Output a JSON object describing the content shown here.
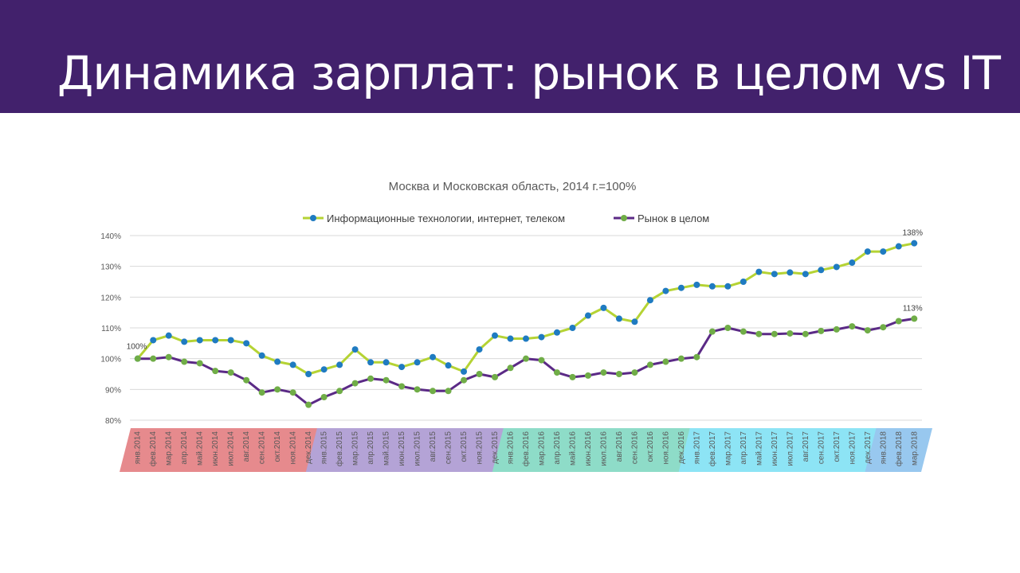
{
  "header": {
    "title": "Динамика зарплат: рынок в целом vs IT",
    "bg_color": "#42216c"
  },
  "chart_data": {
    "type": "line",
    "title": "Москва и Московская область, 2014 г.=100%",
    "xlabel": "",
    "ylabel": "",
    "ylim": [
      80,
      140
    ],
    "yticks": [
      "80%",
      "90%",
      "100%",
      "110%",
      "120%",
      "130%",
      "140%"
    ],
    "grid": true,
    "legend_position": "top",
    "categories": [
      "янв.2014",
      "фев.2014",
      "мар.2014",
      "апр.2014",
      "май.2014",
      "июн.2014",
      "июл.2014",
      "авг.2014",
      "сен.2014",
      "окт.2014",
      "ноя.2014",
      "дек.2014",
      "янв.2015",
      "фев.2015",
      "мар.2015",
      "апр.2015",
      "май.2015",
      "июн.2015",
      "июл.2015",
      "авг.2015",
      "сен.2015",
      "окт.2015",
      "ноя.2015",
      "дек.2015",
      "янв.2016",
      "фев.2016",
      "мар.2016",
      "апр.2016",
      "май.2016",
      "июн.2016",
      "июл.2016",
      "авг.2016",
      "сен.2016",
      "окт.2016",
      "ноя.2016",
      "дек.2016",
      "янв.2017",
      "фев.2017",
      "мар.2017",
      "апр.2017",
      "май.2017",
      "июн.2017",
      "июл.2017",
      "авг.2017",
      "сен.2017",
      "окт.2017",
      "ноя.2017",
      "дек.2017",
      "янв.2018",
      "фев.2018",
      "мар.2018"
    ],
    "series": [
      {
        "name": "Информационные технологии, интернет, телеком",
        "line_color": "#b5d334",
        "marker_color": "#1f7bc1",
        "values": [
          100,
          106,
          107.5,
          105.5,
          106,
          106,
          106,
          105,
          101,
          99,
          98,
          95,
          96.5,
          98,
          103,
          98.8,
          98.8,
          97.3,
          98.8,
          100.5,
          97.8,
          95.8,
          103,
          107.5,
          106.5,
          106.5,
          107,
          108.5,
          110,
          114,
          116.5,
          113,
          112,
          119,
          122,
          123,
          124,
          123.5,
          123.5,
          125,
          128.2,
          127.5,
          128,
          127.5,
          128.8,
          129.8,
          131.2,
          134.8,
          134.8,
          136.5,
          137.5
        ]
      },
      {
        "name": "Рынок в целом",
        "line_color": "#5b2a86",
        "marker_color": "#70ad47",
        "values": [
          100,
          100,
          100.5,
          99,
          98.5,
          96,
          95.5,
          93,
          89,
          90,
          89,
          85,
          87.5,
          89.5,
          92,
          93.5,
          93,
          91,
          90,
          89.5,
          89.5,
          93,
          95,
          94,
          97,
          100,
          99.5,
          95.5,
          94,
          94.5,
          95.5,
          95,
          95.5,
          98,
          99,
          100,
          100.5,
          108.8,
          110,
          108.8,
          108,
          108,
          108.2,
          108,
          109,
          109.5,
          110.5,
          109.2,
          110.2,
          112.2,
          113
        ]
      }
    ],
    "annotations": [
      {
        "text": "100%",
        "series": 1,
        "index": 0
      },
      {
        "text": "138%",
        "series": 0,
        "index": 50
      },
      {
        "text": "113%",
        "series": 1,
        "index": 50
      }
    ],
    "year_bands": [
      {
        "year": "2014",
        "color": "#e68a8d"
      },
      {
        "year": "2015",
        "color": "#b4a3d6"
      },
      {
        "year": "2016",
        "color": "#8edcc8"
      },
      {
        "year": "2017",
        "color": "#8de4f5"
      },
      {
        "year": "2018",
        "color": "#98c8ef"
      }
    ]
  }
}
